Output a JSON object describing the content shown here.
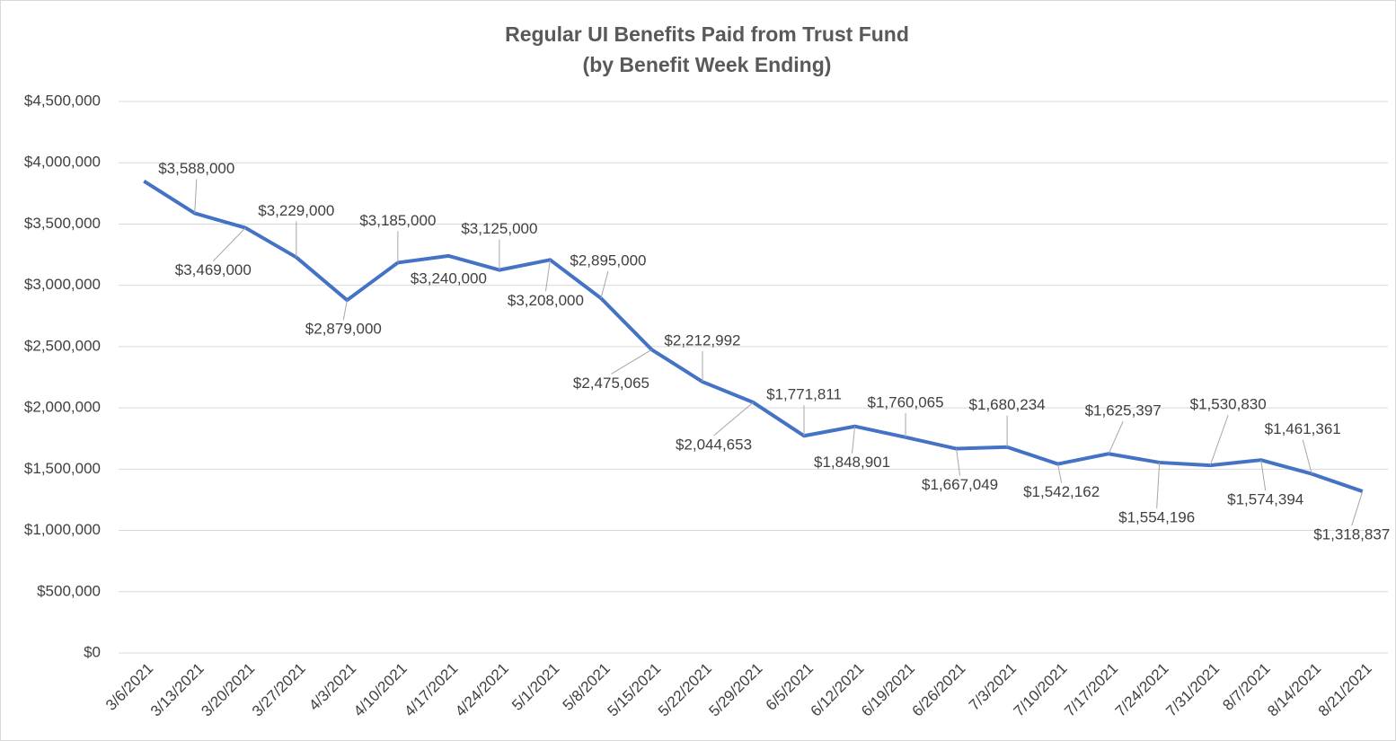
{
  "chart_data": {
    "type": "line",
    "title": "Regular UI Benefits Paid from Trust Fund",
    "subtitle": "(by Benefit Week Ending)",
    "categories": [
      "3/6/2021",
      "3/13/2021",
      "3/20/2021",
      "3/27/2021",
      "4/3/2021",
      "4/10/2021",
      "4/17/2021",
      "4/24/2021",
      "5/1/2021",
      "5/8/2021",
      "5/15/2021",
      "5/22/2021",
      "5/29/2021",
      "6/5/2021",
      "6/12/2021",
      "6/19/2021",
      "6/26/2021",
      "7/3/2021",
      "7/10/2021",
      "7/17/2021",
      "7/24/2021",
      "7/31/2021",
      "8/7/2021",
      "8/14/2021",
      "8/21/2021"
    ],
    "series": [
      {
        "name": "Regular UI Benefits Paid",
        "color": "#4472c4",
        "values": [
          3850000,
          3588000,
          3469000,
          3229000,
          2879000,
          3185000,
          3240000,
          3125000,
          3208000,
          2895000,
          2475065,
          2212992,
          2044653,
          1771811,
          1848901,
          1760065,
          1667049,
          1680234,
          1542162,
          1625397,
          1554196,
          1530830,
          1574394,
          1461361,
          1318837
        ],
        "value_labels": [
          null,
          "$3,588,000",
          "$3,469,000",
          "$3,229,000",
          "$2,879,000",
          "$3,185,000",
          "$3,240,000",
          "$3,125,000",
          "$3,208,000",
          "$2,895,000",
          "$2,475,065",
          "$2,212,992",
          "$2,044,653",
          "$1,771,811",
          "$1,848,901",
          "$1,760,065",
          "$1,667,049",
          "$1,680,234",
          "$1,542,162",
          "$1,625,397",
          "$1,554,196",
          "$1,530,830",
          "$1,574,394",
          "$1,461,361",
          "$1,318,837"
        ]
      }
    ],
    "ylim": [
      0,
      4500000
    ],
    "yticks": [
      {
        "value": 0,
        "label": "$0"
      },
      {
        "value": 500000,
        "label": "$500,000"
      },
      {
        "value": 1000000,
        "label": "$1,000,000"
      },
      {
        "value": 1500000,
        "label": "$1,500,000"
      },
      {
        "value": 2000000,
        "label": "$2,000,000"
      },
      {
        "value": 2500000,
        "label": "$2,500,000"
      },
      {
        "value": 3000000,
        "label": "$3,000,000"
      },
      {
        "value": 3500000,
        "label": "$3,500,000"
      },
      {
        "value": 4000000,
        "label": "$4,000,000"
      },
      {
        "value": 4500000,
        "label": "$4,500,000"
      }
    ],
    "grid": true
  }
}
